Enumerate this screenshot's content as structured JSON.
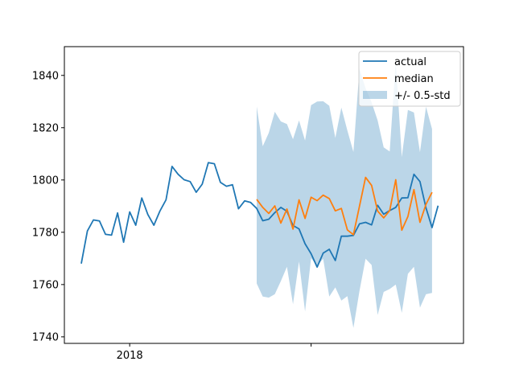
{
  "chart_data": {
    "type": "line",
    "title": "",
    "xlabel": "",
    "ylabel": "",
    "x_ticks": [
      {
        "x": 4,
        "label": "2018"
      },
      {
        "x": 19,
        "label": ""
      }
    ],
    "xlim": [
      -1.4,
      31.6
    ],
    "y_ticks": [
      1740,
      1760,
      1780,
      1800,
      1820,
      1840
    ],
    "ylim": [
      1737.5,
      1851
    ],
    "grid": false,
    "legend_placement": "upper right",
    "colors": {
      "actual": "#1f77b4",
      "median": "#ff7f0e",
      "band": "#1f77b4"
    },
    "series": [
      {
        "name": "actual",
        "x": [
          0,
          0.5,
          1,
          1.5,
          2,
          2.5,
          3,
          3.5,
          4,
          4.5,
          5,
          5.5,
          6,
          6.5,
          7,
          7.5,
          8,
          8.5,
          9,
          9.5,
          10,
          10.5,
          11,
          11.5,
          12,
          12.5,
          13,
          13.5,
          14,
          14.5,
          15,
          15.5,
          16,
          16.5,
          17,
          17.5,
          18,
          18.5,
          19,
          19.5,
          20,
          20.5,
          21,
          21.5,
          22,
          22.5,
          23,
          23.5,
          24,
          24.5,
          25,
          25.5,
          26,
          26.5,
          27,
          27.5,
          28,
          28.5,
          29,
          29.5
        ],
        "values": [
          1768,
          1780.5,
          1784.7,
          1784.3,
          1779.2,
          1778.9,
          1787.4,
          1776.2,
          1787.8,
          1782.7,
          1793.1,
          1786.8,
          1782.7,
          1788.1,
          1792.4,
          1805.2,
          1802.2,
          1800.1,
          1799.4,
          1795.3,
          1798.4,
          1806.6,
          1806.2,
          1799.1,
          1797.6,
          1798.2,
          1789,
          1792,
          1791.4,
          1789.1,
          1784.4,
          1785,
          1787.5,
          1789.5,
          1788,
          1782.6,
          1781.3,
          1775.6,
          1771.8,
          1766.7,
          1772,
          1773.5,
          1769.2,
          1778.5,
          1778.5,
          1778.8,
          1783.2,
          1783.8,
          1782.8,
          1790.3,
          1786.9,
          1788.3,
          1789.5,
          1793.1,
          1793.2,
          1802.2,
          1799.4,
          1789.3,
          1781.8,
          1790.2
        ]
      },
      {
        "name": "median",
        "x": [
          14.5,
          15,
          15.5,
          16,
          16.5,
          17,
          17.5,
          18,
          18.5,
          19,
          19.5,
          20,
          20.5,
          21,
          21.5,
          22,
          22.5,
          23,
          23.5,
          24,
          24.5,
          25,
          25.5,
          26,
          26.5,
          27,
          27.5,
          28,
          28.5,
          29,
          29.5
        ],
        "values": [
          1792.6,
          1789.5,
          1787.2,
          1790.1,
          1783.5,
          1788.9,
          1781.2,
          1792.4,
          1785.3,
          1793.4,
          1792.1,
          1794.2,
          1792.9,
          1788.2,
          1789.1,
          1780.9,
          1779.1,
          1789.9,
          1801,
          1797.9,
          1788.1,
          1785.5,
          1788.3,
          1800.1,
          1780.8,
          1786,
          1796.3,
          1783.8,
          1790.7,
          1795.3,
          null
        ]
      }
    ],
    "band": {
      "name": "+/- 0.5-std",
      "x": [
        14.5,
        15,
        15.5,
        16,
        16.5,
        17,
        17.5,
        18,
        18.5,
        19,
        19.5,
        20,
        20.5,
        21,
        21.5,
        22,
        22.5,
        23,
        23.5,
        24,
        24.5,
        25,
        25.5,
        26,
        26.5,
        27,
        27.5,
        28,
        28.5,
        29
      ],
      "upper": [
        1828.1,
        1812.9,
        1818,
        1826.1,
        1822.4,
        1821.4,
        1815.6,
        1822.8,
        1815.1,
        1828.6,
        1830,
        1830.1,
        1828.4,
        1816.1,
        1827.7,
        1818.9,
        1810.7,
        1842.5,
        1835.1,
        1829.7,
        1822.8,
        1812.5,
        1810.9,
        1845.4,
        1808.8,
        1826.8,
        1825.8,
        1810.6,
        1828,
        1819.5
      ],
      "lower": [
        1760.4,
        1755.4,
        1755,
        1756.3,
        1761.3,
        1766.8,
        1752.5,
        1768.8,
        1749.7,
        1770.1,
        1767.1,
        1769.9,
        1755.4,
        1758.9,
        1753.9,
        1755.6,
        1743.4,
        1757.5,
        1769.9,
        1767.5,
        1748.4,
        1757.2,
        1758.3,
        1760,
        1749.2,
        1764.1,
        1766.8,
        1751.2,
        1756.3,
        1756.8
      ]
    }
  }
}
